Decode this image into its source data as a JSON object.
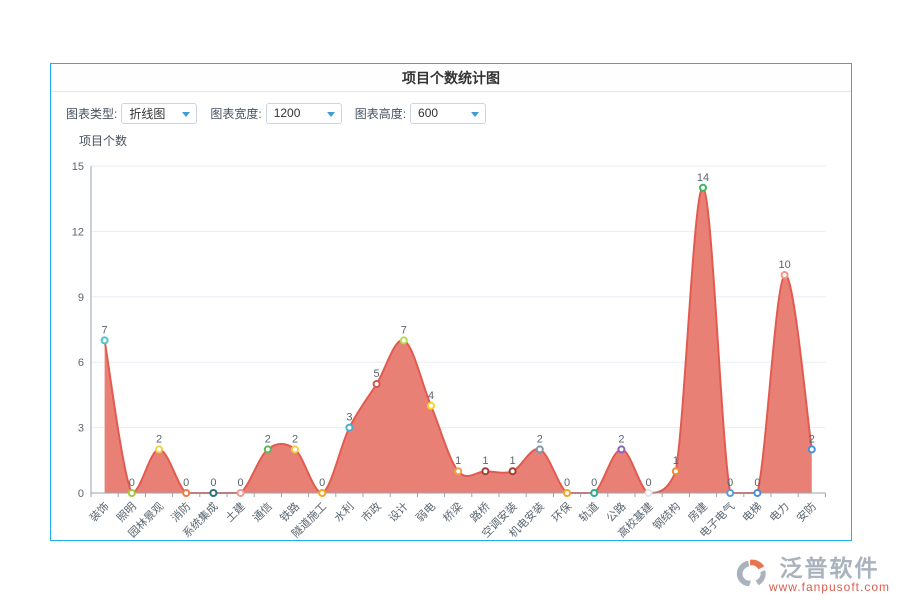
{
  "header": {
    "title": "项目个数统计图"
  },
  "controls": {
    "type": {
      "label": "图表类型:",
      "value": "折线图"
    },
    "width": {
      "label": "图表宽度:",
      "value": "1200"
    },
    "height": {
      "label": "图表高度:",
      "value": "600"
    }
  },
  "chart_data": {
    "type": "area",
    "title": "项目个数",
    "ylabel": "项目个数",
    "categories": [
      "装饰",
      "照明",
      "园林景观",
      "消防",
      "系统集成",
      "土建",
      "通信",
      "铁路",
      "隧道施工",
      "水利",
      "市政",
      "设计",
      "弱电",
      "桥梁",
      "路桥",
      "空调安装",
      "机电安装",
      "环保",
      "轨道",
      "公路",
      "高校基建",
      "钢结构",
      "房建",
      "电子电气",
      "电梯",
      "电力",
      "安防"
    ],
    "values": [
      7,
      0,
      2,
      0,
      0,
      0,
      2,
      2,
      0,
      3,
      5,
      7,
      4,
      1,
      1,
      1,
      2,
      0,
      0,
      2,
      0,
      1,
      14,
      0,
      0,
      10,
      2
    ],
    "point_colors": [
      "#45c5cf",
      "#a4c93c",
      "#f5cf45",
      "#ef7b45",
      "#27727b",
      "#f29a8e",
      "#5cb85c",
      "#f5cf45",
      "#f5a623",
      "#44b2d6",
      "#d9534f",
      "#b6d957",
      "#f5d327",
      "#f0a04a",
      "#a33c32",
      "#a33c32",
      "#8395a7",
      "#f5a623",
      "#2ab08f",
      "#8e5fbf",
      "#e6e6e6",
      "#ef8b34",
      "#3cb95d",
      "#5b9bd5",
      "#4a90d9",
      "#f2968b",
      "#4a90d9"
    ],
    "ylim": [
      0,
      15
    ],
    "yticks": [
      0,
      3,
      6,
      9,
      12,
      15
    ],
    "x_label_rotation": 45,
    "grid": "on",
    "legend": "none",
    "line_color": "#e15b50",
    "area_color": "#e8796e",
    "axis_color": "#9aa3ad",
    "grid_color": "#e9eef5",
    "label_color": "#5a6570"
  },
  "footer": {
    "brand": "泛普软件",
    "url": "www.fanpusoft.com"
  }
}
